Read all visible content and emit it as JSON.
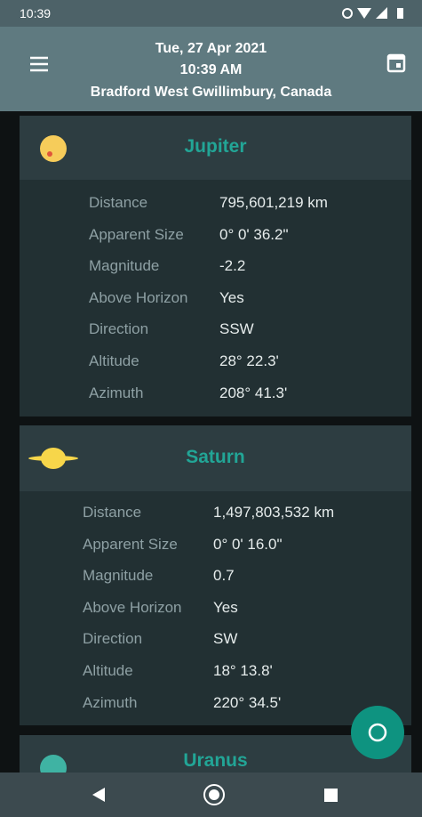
{
  "status": {
    "time": "10:39"
  },
  "header": {
    "date": "Tue, 27 Apr  2021",
    "time": "10:39 AM",
    "location": "Bradford West Gwillimbury, Canada"
  },
  "planets": [
    {
      "name": "Jupiter",
      "rows": [
        {
          "label": "Distance",
          "value": "795,601,219 km"
        },
        {
          "label": "Apparent Size",
          "value": "0° 0' 36.2\""
        },
        {
          "label": "Magnitude",
          "value": "-2.2"
        },
        {
          "label": "Above Horizon",
          "value": "Yes"
        },
        {
          "label": "Direction",
          "value": "SSW"
        },
        {
          "label": "Altitude",
          "value": "28° 22.3'"
        },
        {
          "label": "Azimuth",
          "value": "208° 41.3'"
        }
      ]
    },
    {
      "name": "Saturn",
      "rows": [
        {
          "label": "Distance",
          "value": "1,497,803,532 km"
        },
        {
          "label": "Apparent Size",
          "value": "0° 0' 16.0\""
        },
        {
          "label": "Magnitude",
          "value": "0.7"
        },
        {
          "label": "Above Horizon",
          "value": "Yes"
        },
        {
          "label": "Direction",
          "value": "SW"
        },
        {
          "label": "Altitude",
          "value": "18° 13.8'"
        },
        {
          "label": "Azimuth",
          "value": "220° 34.5'"
        }
      ]
    },
    {
      "name": "Uranus",
      "rows": []
    }
  ]
}
